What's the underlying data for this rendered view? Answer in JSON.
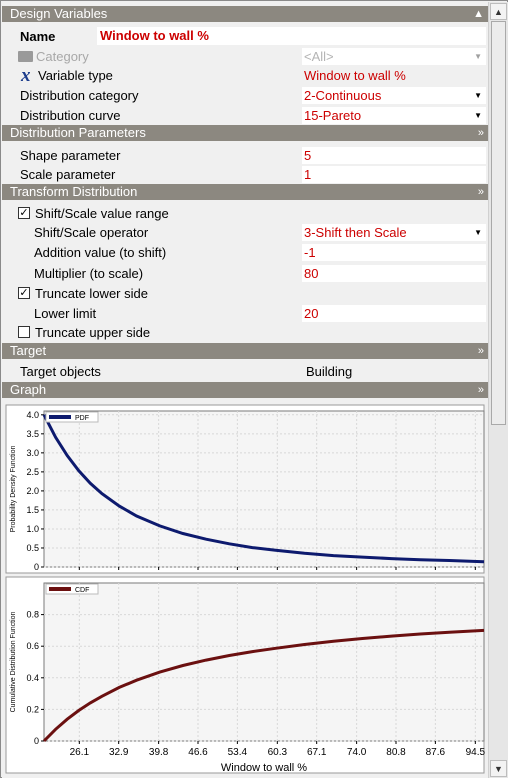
{
  "sections": {
    "design_variables": "Design Variables",
    "distribution_parameters": "Distribution Parameters",
    "transform_distribution": "Transform Distribution",
    "target": "Target",
    "graph": "Graph"
  },
  "name": {
    "label": "Name",
    "value": "Window to wall %"
  },
  "category": {
    "label": "Category",
    "value": "<All>"
  },
  "variable_type": {
    "label": "Variable type",
    "value": "Window to wall %"
  },
  "distribution_category": {
    "label": "Distribution category",
    "value": "2-Continuous"
  },
  "distribution_curve": {
    "label": "Distribution curve",
    "value": "15-Pareto"
  },
  "shape_parameter": {
    "label": "Shape parameter",
    "value": "5"
  },
  "scale_parameter": {
    "label": "Scale parameter",
    "value": "1"
  },
  "shift_scale_range": {
    "label": "Shift/Scale value range",
    "checked": true
  },
  "shift_scale_operator": {
    "label": "Shift/Scale operator",
    "value": "3-Shift then Scale"
  },
  "addition_value": {
    "label": "Addition value (to shift)",
    "value": "-1"
  },
  "multiplier": {
    "label": "Multiplier (to scale)",
    "value": "80"
  },
  "truncate_lower": {
    "label": "Truncate lower side",
    "checked": true
  },
  "lower_limit": {
    "label": "Lower limit",
    "value": "20"
  },
  "truncate_upper": {
    "label": "Truncate upper side",
    "checked": false
  },
  "target_objects": {
    "label": "Target objects",
    "value": "Building"
  },
  "icons": {
    "category": "folder-icon",
    "variable_type": "x-variable-icon"
  },
  "colors": {
    "section_bar": "#8c8880",
    "value_red": "#cc0000",
    "pdf_line": "#0d1a6e",
    "cdf_line": "#6b1010"
  },
  "chart_data": [
    {
      "type": "line",
      "title": "",
      "legend": "PDF",
      "xlabel": "",
      "ylabel": "Probability Density Function",
      "xlim": [
        20,
        96
      ],
      "ylim": [
        0,
        4.1
      ],
      "yticks": [
        "0",
        "0.5",
        "1.0",
        "1.5",
        "2.0",
        "2.5",
        "3.0",
        "3.5",
        "4.0"
      ],
      "x": [
        20,
        22,
        24,
        26,
        28,
        30,
        33,
        36,
        40,
        44,
        48,
        52,
        56,
        60,
        65,
        70,
        75,
        80,
        85,
        90,
        96
      ],
      "values": [
        4.0,
        3.41,
        2.93,
        2.53,
        2.2,
        1.93,
        1.6,
        1.34,
        1.08,
        0.88,
        0.73,
        0.61,
        0.51,
        0.44,
        0.36,
        0.3,
        0.26,
        0.22,
        0.19,
        0.17,
        0.14
      ]
    },
    {
      "type": "line",
      "title": "",
      "legend": "CDF",
      "xlabel": "Window to wall %",
      "ylabel": "Cumulative Distribution Function",
      "xlim": [
        20,
        96
      ],
      "ylim": [
        0,
        1.0
      ],
      "yticks": [
        "0",
        "0.2",
        "0.4",
        "0.6",
        "0.8"
      ],
      "xticks": [
        "26.1",
        "32.9",
        "39.8",
        "46.6",
        "53.4",
        "60.3",
        "67.1",
        "74.0",
        "80.8",
        "87.6",
        "94.5"
      ],
      "x": [
        20,
        22,
        24,
        26,
        28,
        30,
        33,
        36,
        40,
        44,
        48,
        52,
        56,
        60,
        65,
        70,
        75,
        80,
        85,
        90,
        96
      ],
      "values": [
        0,
        0.074,
        0.138,
        0.193,
        0.241,
        0.283,
        0.339,
        0.385,
        0.436,
        0.478,
        0.512,
        0.541,
        0.566,
        0.587,
        0.611,
        0.631,
        0.649,
        0.664,
        0.677,
        0.688,
        0.7
      ]
    }
  ]
}
